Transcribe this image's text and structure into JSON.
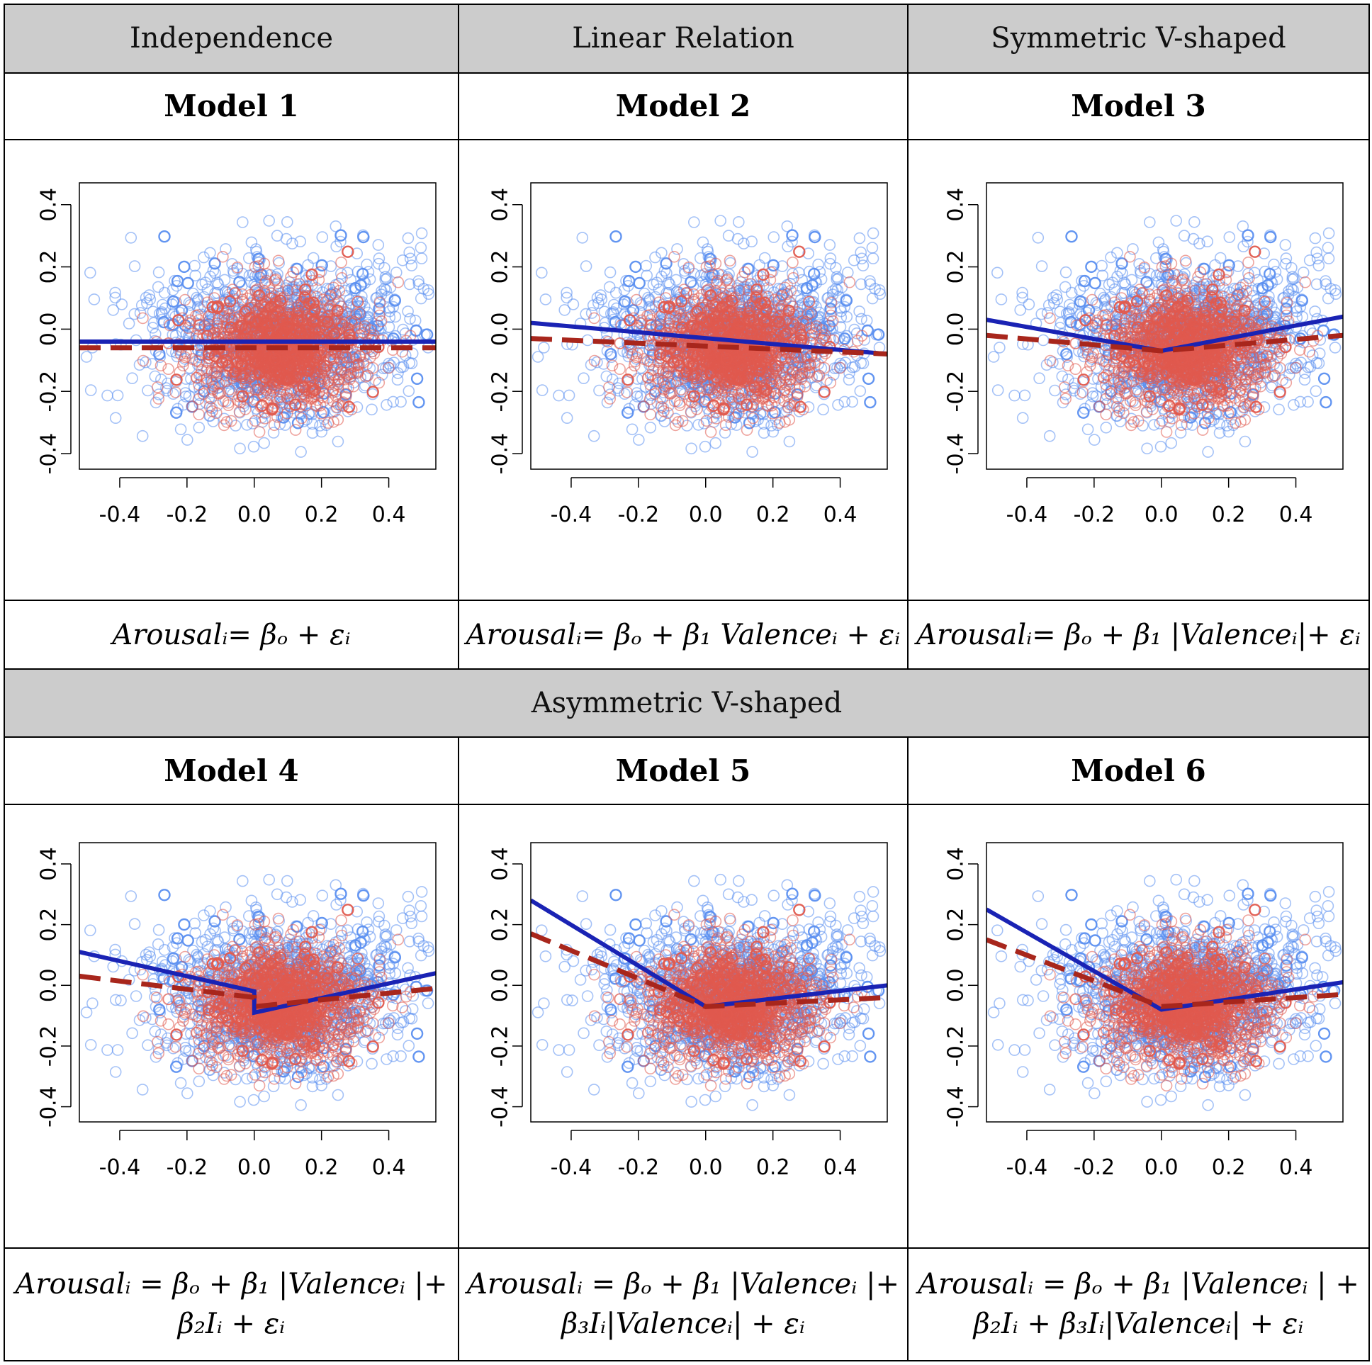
{
  "headers": {
    "independence": "Independence",
    "linear": "Linear Relation",
    "symmetric": "Symmetric V-shaped",
    "asymmetric": "Asymmetric V-shaped"
  },
  "models": [
    {
      "title": "Model 1",
      "equation": "Arousalᵢ= βₒ + εᵢ"
    },
    {
      "title": "Model 2",
      "equation": "Arousalᵢ= βₒ + β₁ Valenceᵢ + εᵢ"
    },
    {
      "title": "Model 3",
      "equation": "Arousalᵢ= βₒ + β₁ |Valenceᵢ|+ εᵢ"
    },
    {
      "title": "Model 4",
      "equation_line1": "Arousalᵢ = βₒ + β₁ |Valenceᵢ |+",
      "equation_line2": "β₂Iᵢ + εᵢ"
    },
    {
      "title": "Model 5",
      "equation_line1": "Arousalᵢ = βₒ + β₁ |Valenceᵢ |+",
      "equation_line2": "β₃Iᵢ|Valenceᵢ| + εᵢ"
    },
    {
      "title": "Model 6",
      "equation_line1": "Arousalᵢ = βₒ + β₁ |Valenceᵢ | +",
      "equation_line2": "β₂Iᵢ + β₃Iᵢ|Valenceᵢ| + εᵢ"
    }
  ],
  "colors": {
    "header_bg": "#cccccc",
    "blue_points": "#5b8ff0",
    "red_points": "#e05a4e",
    "blue_line": "#1a23b4",
    "red_dashed_line": "#a8261c"
  },
  "chart_data": [
    {
      "type": "scatter",
      "title": "Model 1",
      "xticks": [
        "-0.4",
        "-0.2",
        "0.0",
        "0.2",
        "0.4"
      ],
      "yticks": [
        "-0.4",
        "-0.2",
        "0.0",
        "0.2",
        "0.4"
      ],
      "xlim": [
        -0.52,
        0.54
      ],
      "ylim": [
        -0.45,
        0.47
      ],
      "point_cloud": {
        "center": [
          0.08,
          -0.05
        ],
        "spread": [
          0.17,
          0.12
        ]
      },
      "series": [
        {
          "name": "fit",
          "style": "solid-blue",
          "x": [
            -0.52,
            0.54
          ],
          "y": [
            -0.04,
            -0.04
          ]
        },
        {
          "name": "reference",
          "style": "dashed-red",
          "x": [
            -0.52,
            0.54
          ],
          "y": [
            -0.06,
            -0.06
          ]
        }
      ]
    },
    {
      "type": "scatter",
      "title": "Model 2",
      "xticks": [
        "-0.4",
        "-0.2",
        "0.0",
        "0.2",
        "0.4"
      ],
      "yticks": [
        "-0.4",
        "-0.2",
        "0.0",
        "0.2",
        "0.4"
      ],
      "xlim": [
        -0.52,
        0.54
      ],
      "ylim": [
        -0.45,
        0.47
      ],
      "point_cloud": {
        "center": [
          0.08,
          -0.05
        ],
        "spread": [
          0.17,
          0.12
        ]
      },
      "series": [
        {
          "name": "fit",
          "style": "solid-blue",
          "x": [
            -0.52,
            0.54
          ],
          "y": [
            0.02,
            -0.08
          ]
        },
        {
          "name": "reference",
          "style": "dashed-red",
          "x": [
            -0.52,
            0.54
          ],
          "y": [
            -0.03,
            -0.08
          ]
        }
      ]
    },
    {
      "type": "scatter",
      "title": "Model 3",
      "xticks": [
        "-0.4",
        "-0.2",
        "0.0",
        "0.2",
        "0.4"
      ],
      "yticks": [
        "-0.4",
        "-0.2",
        "0.0",
        "0.2",
        "0.4"
      ],
      "xlim": [
        -0.52,
        0.54
      ],
      "ylim": [
        -0.45,
        0.47
      ],
      "point_cloud": {
        "center": [
          0.08,
          -0.05
        ],
        "spread": [
          0.17,
          0.12
        ]
      },
      "series": [
        {
          "name": "fit",
          "style": "solid-blue",
          "x": [
            -0.52,
            0.0,
            0.54
          ],
          "y": [
            0.03,
            -0.07,
            0.04
          ]
        },
        {
          "name": "reference",
          "style": "dashed-red",
          "x": [
            -0.52,
            0.0,
            0.54
          ],
          "y": [
            -0.02,
            -0.07,
            -0.02
          ]
        }
      ]
    },
    {
      "type": "scatter",
      "title": "Model 4",
      "xticks": [
        "-0.4",
        "-0.2",
        "0.0",
        "0.2",
        "0.4"
      ],
      "yticks": [
        "-0.4",
        "-0.2",
        "0.0",
        "0.2",
        "0.4"
      ],
      "xlim": [
        -0.52,
        0.54
      ],
      "ylim": [
        -0.45,
        0.47
      ],
      "point_cloud": {
        "center": [
          0.08,
          -0.05
        ],
        "spread": [
          0.17,
          0.12
        ]
      },
      "series": [
        {
          "name": "fit",
          "style": "solid-blue",
          "x": [
            -0.52,
            0.0,
            0.0,
            0.54
          ],
          "y": [
            0.11,
            -0.02,
            -0.09,
            0.04
          ]
        },
        {
          "name": "reference",
          "style": "dashed-red",
          "x": [
            -0.52,
            0.0,
            0.0,
            0.54
          ],
          "y": [
            0.03,
            -0.04,
            -0.07,
            -0.01
          ]
        }
      ]
    },
    {
      "type": "scatter",
      "title": "Model 5",
      "xticks": [
        "-0.4",
        "-0.2",
        "0.0",
        "0.2",
        "0.4"
      ],
      "yticks": [
        "-0.4",
        "-0.2",
        "0.0",
        "0.2",
        "0.4"
      ],
      "xlim": [
        -0.52,
        0.54
      ],
      "ylim": [
        -0.45,
        0.47
      ],
      "point_cloud": {
        "center": [
          0.08,
          -0.05
        ],
        "spread": [
          0.17,
          0.12
        ]
      },
      "series": [
        {
          "name": "fit",
          "style": "solid-blue",
          "x": [
            -0.52,
            0.0,
            0.54
          ],
          "y": [
            0.28,
            -0.07,
            0.0
          ]
        },
        {
          "name": "reference",
          "style": "dashed-red",
          "x": [
            -0.52,
            0.0,
            0.54
          ],
          "y": [
            0.17,
            -0.07,
            -0.04
          ]
        }
      ]
    },
    {
      "type": "scatter",
      "title": "Model 6",
      "xticks": [
        "-0.4",
        "-0.2",
        "0.0",
        "0.2",
        "0.4"
      ],
      "yticks": [
        "-0.4",
        "-0.2",
        "0.0",
        "0.2",
        "0.4"
      ],
      "xlim": [
        -0.52,
        0.54
      ],
      "ylim": [
        -0.45,
        0.47
      ],
      "point_cloud": {
        "center": [
          0.08,
          -0.05
        ],
        "spread": [
          0.17,
          0.12
        ]
      },
      "series": [
        {
          "name": "fit",
          "style": "solid-blue",
          "x": [
            -0.52,
            0.0,
            0.54
          ],
          "y": [
            0.25,
            -0.08,
            0.01
          ]
        },
        {
          "name": "reference",
          "style": "dashed-red",
          "x": [
            -0.52,
            0.0,
            0.54
          ],
          "y": [
            0.15,
            -0.07,
            -0.03
          ]
        }
      ]
    }
  ]
}
